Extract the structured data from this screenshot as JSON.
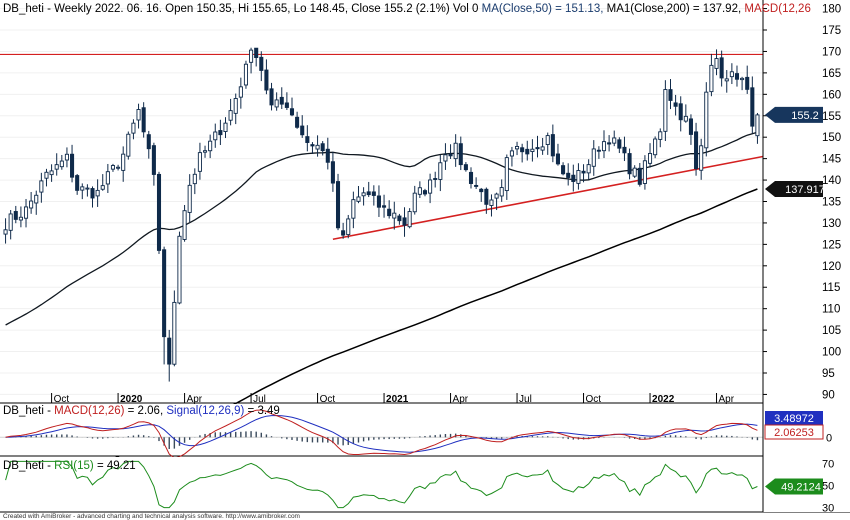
{
  "colors": {
    "candle": "#0f2a4a",
    "ma50": "#101820",
    "ma200": "#000000",
    "trendline": "#d42020",
    "resistance": "#d42020",
    "macd": "#2030c0",
    "signal": "#c02020",
    "histogram": "#3a4a5c",
    "rsi": "#1c8c1c",
    "price_badge": "#17365d",
    "ma_badge": "#111111"
  },
  "chart_data": [
    {
      "type": "candlestick",
      "title_segments": [
        {
          "text": "DB_heti - Weekly 2022. 06. 16. Open 150.35, Hi 155.65, Lo 148.45, Close 155.2 (2.1%) Vol 0 ",
          "color": "#000000"
        },
        {
          "text": "MA(Close,50) = 151.13, ",
          "color": "#1a3c6e"
        },
        {
          "text": "MA1(Close,200) = 137.92, ",
          "color": "#000000"
        },
        {
          "text": "MACD(12,26",
          "color": "#c02020"
        }
      ],
      "ylim": [
        88,
        182
      ],
      "y_ticks": [
        90,
        95,
        100,
        105,
        110,
        115,
        120,
        125,
        130,
        135,
        140,
        145,
        150,
        155,
        160,
        165,
        170,
        175,
        180
      ],
      "x_ticks": [
        {
          "label": "Oct",
          "week": 9,
          "bold": false
        },
        {
          "label": "2020",
          "week": 22,
          "bold": true
        },
        {
          "label": "Apr",
          "week": 35,
          "bold": false
        },
        {
          "label": "Jul",
          "week": 48,
          "bold": false
        },
        {
          "label": "Oct",
          "week": 61,
          "bold": false
        },
        {
          "label": "2021",
          "week": 74,
          "bold": true
        },
        {
          "label": "Apr",
          "week": 87,
          "bold": false
        },
        {
          "label": "Jul",
          "week": 100,
          "bold": false
        },
        {
          "label": "Oct",
          "week": 113,
          "bold": false
        },
        {
          "label": "2022",
          "week": 126,
          "bold": true
        },
        {
          "label": "Apr",
          "week": 139,
          "bold": false
        }
      ],
      "weeks": 148,
      "anchors": [
        [
          0,
          130
        ],
        [
          4,
          133
        ],
        [
          8,
          141
        ],
        [
          12,
          145
        ],
        [
          14,
          138
        ],
        [
          18,
          137
        ],
        [
          23,
          146
        ],
        [
          26,
          156
        ],
        [
          28,
          146
        ],
        [
          29,
          140
        ],
        [
          30,
          124
        ],
        [
          31,
          104
        ],
        [
          32,
          96
        ],
        [
          33,
          112
        ],
        [
          34,
          128
        ],
        [
          36,
          139
        ],
        [
          38,
          145
        ],
        [
          41,
          150
        ],
        [
          44,
          156
        ],
        [
          46,
          162
        ],
        [
          47,
          168
        ],
        [
          49,
          170
        ],
        [
          50,
          166
        ],
        [
          52,
          157
        ],
        [
          55,
          158
        ],
        [
          57,
          153
        ],
        [
          59,
          149
        ],
        [
          61,
          148
        ],
        [
          63,
          145
        ],
        [
          64,
          138
        ],
        [
          65,
          129
        ],
        [
          66,
          126
        ],
        [
          68,
          135
        ],
        [
          70,
          137
        ],
        [
          72,
          135
        ],
        [
          74,
          133
        ],
        [
          76,
          132
        ],
        [
          78,
          130
        ],
        [
          80,
          136
        ],
        [
          83,
          139
        ],
        [
          86,
          147
        ],
        [
          88,
          147
        ],
        [
          90,
          142
        ],
        [
          93,
          137
        ],
        [
          95,
          134
        ],
        [
          97,
          137
        ],
        [
          98,
          144
        ],
        [
          100,
          147
        ],
        [
          103,
          148
        ],
        [
          106,
          150
        ],
        [
          108,
          143
        ],
        [
          110,
          140
        ],
        [
          112,
          141
        ],
        [
          114,
          144
        ],
        [
          116,
          148
        ],
        [
          118,
          150
        ],
        [
          120,
          147
        ],
        [
          122,
          143
        ],
        [
          124,
          140
        ],
        [
          126,
          146
        ],
        [
          128,
          152
        ],
        [
          129,
          162
        ],
        [
          131,
          157
        ],
        [
          133,
          154
        ],
        [
          134,
          150
        ],
        [
          135,
          142
        ],
        [
          136,
          148
        ],
        [
          137,
          162
        ],
        [
          138,
          168
        ],
        [
          139,
          167
        ],
        [
          141,
          163
        ],
        [
          143,
          165
        ],
        [
          145,
          160
        ],
        [
          146,
          151
        ],
        [
          147,
          155.2
        ]
      ],
      "ma50_last": 151.13,
      "ma200_last": 137.92,
      "resistance_level": 169.3,
      "trendline": {
        "from": [
          64,
          126.2
        ],
        "to": [
          148,
          145.5
        ]
      },
      "price_badge": "155.2",
      "ma_badge": "137.917"
    },
    {
      "type": "line",
      "title_segments": [
        {
          "text": "DB_heti - ",
          "color": "#000000"
        },
        {
          "text": "MACD(12,26)",
          "color": "#c02020"
        },
        {
          "text": " = 2.06, ",
          "color": "#000000"
        },
        {
          "text": "Signal(12,26,9)",
          "color": "#2030c0"
        },
        {
          "text": " = 3.49",
          "color": "#000000"
        }
      ],
      "series": [
        {
          "name": "MACD(12,26)",
          "last": 2.06
        },
        {
          "name": "Signal(12,26,9)",
          "last": 3.49
        }
      ],
      "y_ticks": [
        0
      ],
      "badges": [
        "3.48972",
        "2.06253"
      ]
    },
    {
      "type": "line",
      "title_segments": [
        {
          "text": "DB_heti - ",
          "color": "#000000"
        },
        {
          "text": "RSI(15)",
          "color": "#1c8c1c"
        },
        {
          "text": " = 49.21",
          "color": "#000000"
        }
      ],
      "series": [
        {
          "name": "RSI(15)",
          "last": 49.21
        }
      ],
      "ylim": [
        26,
        76
      ],
      "y_ticks": [
        30,
        50,
        70
      ],
      "badges": [
        "49.2124"
      ]
    }
  ],
  "footer": "Created with AmiBroker - advanced charting and technical analysis software. http://www.amibroker.com"
}
